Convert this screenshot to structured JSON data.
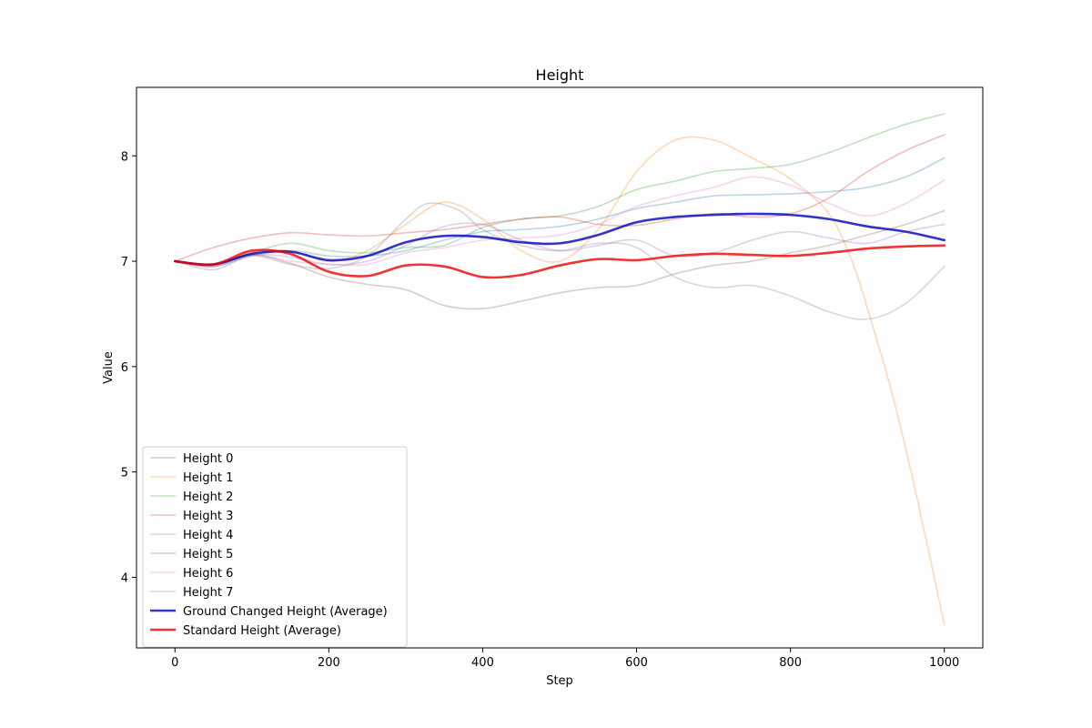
{
  "chart_data": {
    "type": "line",
    "title": "Height",
    "xlabel": "Step",
    "ylabel": "Value",
    "xlim": [
      -50,
      1050
    ],
    "ylim": [
      3.33,
      8.65
    ],
    "xticks": [
      0,
      200,
      400,
      600,
      800,
      1000
    ],
    "yticks": [
      4,
      5,
      6,
      7,
      8
    ],
    "grid": false,
    "legend_position": "lower-left",
    "series": [
      {
        "name": "Height 0",
        "color": "#1f77b4",
        "opacity": 0.3,
        "width": 1.6,
        "x": [
          0,
          50,
          100,
          150,
          200,
          250,
          300,
          350,
          400,
          450,
          500,
          550,
          600,
          650,
          700,
          750,
          800,
          850,
          900,
          950,
          1000
        ],
        "y": [
          7.0,
          6.95,
          7.05,
          7.1,
          7.05,
          7.05,
          7.1,
          7.2,
          7.28,
          7.3,
          7.33,
          7.4,
          7.5,
          7.56,
          7.62,
          7.63,
          7.64,
          7.66,
          7.7,
          7.8,
          7.98
        ]
      },
      {
        "name": "Height 1",
        "color": "#ff7f0e",
        "opacity": 0.3,
        "width": 1.6,
        "x": [
          0,
          50,
          100,
          150,
          200,
          250,
          300,
          350,
          400,
          450,
          500,
          550,
          600,
          650,
          700,
          750,
          800,
          850,
          880,
          900,
          930,
          960,
          1000
        ],
        "y": [
          7.0,
          6.97,
          7.08,
          7.1,
          7.0,
          7.1,
          7.35,
          7.56,
          7.4,
          7.1,
          7.0,
          7.3,
          7.85,
          8.15,
          8.15,
          7.98,
          7.78,
          7.45,
          7.0,
          6.55,
          5.8,
          4.9,
          3.55
        ]
      },
      {
        "name": "Height 2",
        "color": "#2ca02c",
        "opacity": 0.3,
        "width": 1.6,
        "x": [
          0,
          50,
          100,
          150,
          200,
          250,
          300,
          350,
          400,
          450,
          500,
          550,
          600,
          650,
          700,
          750,
          800,
          850,
          900,
          950,
          1000
        ],
        "y": [
          7.0,
          6.97,
          7.08,
          7.17,
          7.1,
          7.08,
          7.13,
          7.15,
          7.32,
          7.4,
          7.43,
          7.52,
          7.68,
          7.76,
          7.85,
          7.88,
          7.92,
          8.03,
          8.17,
          8.3,
          8.4
        ]
      },
      {
        "name": "Height 3",
        "color": "#d62728",
        "opacity": 0.3,
        "width": 1.6,
        "x": [
          0,
          50,
          100,
          150,
          200,
          250,
          300,
          350,
          400,
          450,
          500,
          550,
          600,
          650,
          700,
          750,
          800,
          850,
          900,
          950,
          1000
        ],
        "y": [
          7.0,
          7.13,
          7.22,
          7.27,
          7.25,
          7.24,
          7.27,
          7.3,
          7.35,
          7.4,
          7.42,
          7.35,
          7.34,
          7.4,
          7.45,
          7.42,
          7.45,
          7.6,
          7.85,
          8.05,
          8.2
        ]
      },
      {
        "name": "Height 4",
        "color": "#9467bd",
        "opacity": 0.3,
        "width": 1.6,
        "x": [
          0,
          50,
          100,
          150,
          200,
          250,
          300,
          350,
          400,
          450,
          500,
          550,
          600,
          650,
          700,
          750,
          800,
          850,
          900,
          950,
          1000
        ],
        "y": [
          7.0,
          6.97,
          7.06,
          7.04,
          6.97,
          7.0,
          7.15,
          7.33,
          7.35,
          7.2,
          7.1,
          7.15,
          7.2,
          7.05,
          7.08,
          7.2,
          7.28,
          7.22,
          7.17,
          7.28,
          7.35
        ]
      },
      {
        "name": "Height 5",
        "color": "#8c564b",
        "opacity": 0.3,
        "width": 1.6,
        "x": [
          0,
          50,
          100,
          150,
          200,
          250,
          300,
          350,
          400,
          450,
          500,
          550,
          600,
          650,
          700,
          750,
          800,
          850,
          900,
          950,
          1000
        ],
        "y": [
          7.0,
          6.95,
          7.06,
          6.98,
          6.85,
          6.78,
          6.73,
          6.58,
          6.55,
          6.62,
          6.7,
          6.75,
          6.77,
          6.88,
          6.96,
          7.0,
          7.08,
          7.15,
          7.25,
          7.35,
          7.48
        ]
      },
      {
        "name": "Height 6",
        "color": "#e377c2",
        "opacity": 0.3,
        "width": 1.6,
        "x": [
          0,
          50,
          100,
          150,
          200,
          250,
          300,
          350,
          400,
          450,
          500,
          550,
          600,
          650,
          700,
          750,
          800,
          850,
          900,
          950,
          1000
        ],
        "y": [
          7.0,
          6.95,
          7.06,
          7.0,
          6.97,
          6.97,
          7.08,
          7.13,
          7.2,
          7.22,
          7.25,
          7.35,
          7.52,
          7.62,
          7.7,
          7.8,
          7.72,
          7.55,
          7.43,
          7.55,
          7.77
        ]
      },
      {
        "name": "Height 7",
        "color": "#7f7f7f",
        "opacity": 0.3,
        "width": 1.6,
        "x": [
          0,
          50,
          100,
          150,
          200,
          250,
          300,
          330,
          370,
          400,
          450,
          500,
          550,
          600,
          650,
          700,
          750,
          800,
          850,
          900,
          950,
          1000
        ],
        "y": [
          7.0,
          6.92,
          7.05,
          6.97,
          6.93,
          7.05,
          7.4,
          7.55,
          7.48,
          7.3,
          7.15,
          7.1,
          7.17,
          7.13,
          6.85,
          6.75,
          6.77,
          6.67,
          6.52,
          6.45,
          6.6,
          6.95
        ]
      },
      {
        "name": "Ground Changed Height (Average)",
        "color": "#0000bb",
        "opacity": 0.8,
        "width": 2.6,
        "x": [
          0,
          50,
          100,
          150,
          200,
          250,
          300,
          350,
          400,
          450,
          500,
          550,
          600,
          650,
          700,
          750,
          800,
          850,
          900,
          950,
          1000
        ],
        "y": [
          7.0,
          6.97,
          7.07,
          7.09,
          7.01,
          7.05,
          7.18,
          7.24,
          7.23,
          7.18,
          7.17,
          7.25,
          7.37,
          7.42,
          7.44,
          7.45,
          7.44,
          7.4,
          7.33,
          7.28,
          7.2
        ]
      },
      {
        "name": "Standard Height (Average)",
        "color": "#ee0000",
        "opacity": 0.8,
        "width": 2.6,
        "x": [
          0,
          50,
          100,
          150,
          200,
          250,
          300,
          350,
          400,
          450,
          500,
          550,
          600,
          650,
          700,
          750,
          800,
          850,
          900,
          950,
          1000
        ],
        "y": [
          7.0,
          6.97,
          7.1,
          7.07,
          6.9,
          6.86,
          6.96,
          6.95,
          6.85,
          6.87,
          6.96,
          7.02,
          7.01,
          7.05,
          7.07,
          7.06,
          7.05,
          7.08,
          7.12,
          7.14,
          7.15
        ]
      }
    ]
  }
}
